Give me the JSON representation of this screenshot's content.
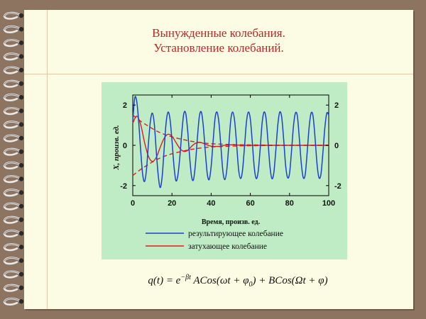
{
  "slide": {
    "title_line1": "Вынужденные колебания.",
    "title_line2": "Установление колебаний."
  },
  "formula": {
    "lhs": "q(t) = e",
    "exp": "−βt",
    "term1": "ACos(ωt + φ",
    "sub0": "0",
    "term1_end": ") + BCos",
    "term2": "(Ωt + φ)"
  },
  "colors": {
    "background": "#8c7460",
    "slide": "#fcfbe3",
    "title": "#b42a2a",
    "plot_bg": "#bfecc4",
    "result_line": "#1a3fd6",
    "damped_line": "#e01b1b"
  },
  "chart_data": {
    "type": "line",
    "xlabel": "Время, произв. ед.",
    "ylabel": "X, произв. ед.",
    "xlim": [
      0,
      100
    ],
    "ylim": [
      -2.5,
      2.5
    ],
    "xticks": [
      "0",
      "20",
      "40",
      "60",
      "80",
      "100"
    ],
    "yticks_left": [
      "2",
      "0",
      "-2"
    ],
    "yticks_right": [
      "2",
      "0",
      "-2"
    ],
    "legend_position": "bottom",
    "series": [
      {
        "name": "результирующее колебание",
        "style": "solid",
        "color": "#1a3fd6",
        "x": [
          0,
          1,
          2,
          3,
          4,
          5,
          6,
          7,
          8,
          9,
          10,
          11,
          12,
          13,
          14,
          15,
          16,
          17,
          18,
          19,
          20,
          21,
          22,
          23,
          24,
          25,
          26,
          27,
          28,
          29,
          30,
          31,
          32,
          33,
          34,
          35,
          36,
          37,
          38,
          39,
          40,
          41,
          42,
          43,
          44,
          45,
          46,
          47,
          48,
          49,
          50,
          51,
          52,
          53,
          54,
          55,
          56,
          57,
          58,
          59,
          60,
          61,
          62,
          63,
          64,
          65,
          66,
          67,
          68,
          69,
          70,
          71,
          72,
          73,
          74,
          75,
          76,
          77,
          78,
          79,
          80,
          81,
          82,
          83,
          84,
          85,
          86,
          87,
          88,
          89,
          90,
          91,
          92,
          93,
          94,
          95,
          96,
          97,
          98,
          99,
          100
        ],
        "y": [
          1.2,
          2.35,
          2.2,
          1.2,
          -0.2,
          -1.4,
          -1.8,
          -1.2,
          0.1,
          1.2,
          1.6,
          1.05,
          -0.3,
          -1.5,
          -2.1,
          -1.55,
          -0.2,
          1.1,
          1.65,
          1.3,
          0.25,
          -1.0,
          -1.75,
          -1.5,
          -0.6,
          0.6,
          1.55,
          1.6,
          0.75,
          -0.55,
          -1.55,
          -1.7,
          -0.9,
          0.4,
          1.45,
          1.65,
          0.95,
          -0.3,
          -1.4,
          -1.7,
          -1.05,
          0.2,
          1.35,
          1.65,
          1.1,
          -0.1,
          -1.3,
          -1.7,
          -1.2,
          0.0,
          1.25,
          1.65,
          1.2,
          0.05,
          -1.2,
          -1.65,
          -1.25,
          -0.1,
          1.15,
          1.65,
          1.3,
          0.15,
          -1.1,
          -1.65,
          -1.3,
          -0.2,
          1.1,
          1.65,
          1.35,
          0.2,
          -1.05,
          -1.65,
          -1.35,
          -0.25,
          1.0,
          1.65,
          1.4,
          0.3,
          -1.0,
          -1.6,
          -1.4,
          -0.3,
          0.95,
          1.6,
          1.45,
          0.35,
          -0.9,
          -1.6,
          -1.45,
          -0.35,
          0.9,
          1.6,
          1.45,
          0.4,
          -0.9,
          -1.6,
          -1.45,
          -0.4,
          0.85,
          1.6,
          1.5
        ]
      },
      {
        "name": "затухающее колебание",
        "style": "solid",
        "color": "#e01b1b",
        "x": [
          0,
          2,
          4,
          6,
          8,
          10,
          12,
          14,
          16,
          18,
          20,
          22,
          24,
          26,
          28,
          30,
          32,
          34,
          36,
          38,
          40,
          44,
          48,
          52,
          56,
          60,
          70,
          80,
          90,
          100
        ],
        "y": [
          1.1,
          1.45,
          1.05,
          0.15,
          -0.55,
          -0.8,
          -0.6,
          -0.1,
          0.35,
          0.55,
          0.45,
          0.15,
          -0.15,
          -0.3,
          -0.25,
          -0.05,
          0.1,
          0.15,
          0.1,
          0.02,
          -0.04,
          -0.05,
          0.02,
          0.02,
          0.0,
          0.0,
          0.0,
          0.0,
          0.0,
          0.0
        ]
      },
      {
        "name": "",
        "style": "dashed",
        "color": "#e01b1b",
        "x": [
          0,
          4,
          8,
          12,
          16,
          20,
          25,
          30,
          35,
          40,
          50,
          60,
          70,
          80,
          90,
          100
        ],
        "y": [
          1.5,
          1.2,
          0.95,
          0.72,
          0.55,
          0.42,
          0.3,
          0.2,
          0.13,
          0.08,
          0.04,
          0.02,
          0.01,
          0.0,
          0.0,
          0.0
        ]
      },
      {
        "name": "",
        "style": "dashed",
        "color": "#e01b1b",
        "x": [
          0,
          4,
          8,
          12,
          16,
          20,
          25,
          30,
          35,
          40,
          50,
          60,
          70,
          80,
          90,
          100
        ],
        "y": [
          -1.5,
          -1.2,
          -0.95,
          -0.72,
          -0.55,
          -0.42,
          -0.3,
          -0.2,
          -0.13,
          -0.08,
          -0.04,
          -0.02,
          -0.01,
          0.0,
          0.0,
          0.0
        ]
      }
    ]
  }
}
